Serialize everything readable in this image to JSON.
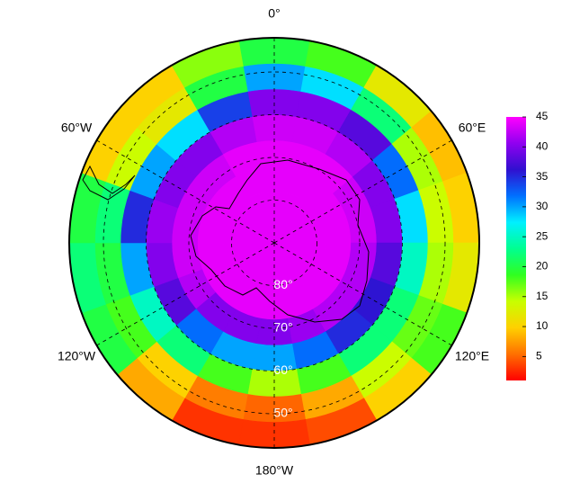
{
  "chart_data": {
    "type": "polar_heatmap",
    "latlim": [
      -90,
      -42
    ],
    "lat_edges": [
      -90,
      -84,
      -78,
      -72,
      -66,
      -60,
      -54,
      -48,
      -42
    ],
    "lon_edges": [
      -10,
      10,
      30,
      50,
      70,
      90,
      110,
      130,
      150,
      170,
      190,
      210,
      230,
      250,
      270,
      290,
      310,
      330,
      350
    ],
    "values": [
      [
        44,
        44,
        44,
        44,
        44,
        44,
        44,
        44,
        44,
        44,
        44,
        44,
        44,
        44,
        44,
        44,
        44,
        44
      ],
      [
        44,
        44,
        44,
        44,
        44,
        44,
        44,
        44,
        44,
        44,
        44,
        44,
        44,
        44,
        44,
        44,
        44,
        44
      ],
      [
        44,
        44,
        44,
        44,
        44,
        44,
        44,
        44,
        44,
        44,
        44,
        44,
        44,
        44,
        44,
        44,
        44,
        44
      ],
      [
        44,
        44,
        44,
        43,
        43,
        42,
        42,
        42,
        41,
        40,
        40,
        40,
        42,
        43,
        43,
        43,
        43,
        44
      ],
      [
        43,
        43,
        42,
        40,
        40,
        38,
        36,
        35,
        32,
        30,
        30,
        32,
        38,
        40,
        41,
        40,
        40,
        42
      ],
      [
        40,
        40,
        38,
        32,
        28,
        25,
        22,
        22,
        18,
        15,
        18,
        22,
        25,
        30,
        35,
        30,
        28,
        34
      ],
      [
        30,
        28,
        22,
        15,
        14,
        15,
        17,
        14,
        8,
        5,
        6,
        10,
        18,
        20,
        22,
        14,
        12,
        20
      ],
      [
        20,
        18,
        12,
        9,
        10,
        12,
        18,
        10,
        4,
        3,
        3,
        8,
        20,
        22,
        20,
        10,
        10,
        16
      ]
    ],
    "colormap": [
      "#ff0000",
      "#ff7000",
      "#ffd000",
      "#c8ff00",
      "#30ff20",
      "#00ff90",
      "#00f0ff",
      "#0070ff",
      "#3010d0",
      "#9000f0",
      "#ff00ff"
    ],
    "clim": [
      1,
      45
    ],
    "cticks": [
      5,
      10,
      15,
      20,
      25,
      30,
      35,
      40,
      45
    ],
    "lat_ticks": [
      {
        "value": -80,
        "label": "80°"
      },
      {
        "value": -70,
        "label": "70°"
      },
      {
        "value": -60,
        "label": "60°"
      },
      {
        "value": -50,
        "label": "50°"
      }
    ],
    "lon_ticks": [
      {
        "value": 0,
        "label": "0°"
      },
      {
        "value": 60,
        "label": "60°E"
      },
      {
        "value": 120,
        "label": "120°E"
      },
      {
        "value": 180,
        "label": "180°W"
      },
      {
        "value": -120,
        "label": "120°W"
      },
      {
        "value": -60,
        "label": "60°W"
      }
    ],
    "grid": true
  }
}
